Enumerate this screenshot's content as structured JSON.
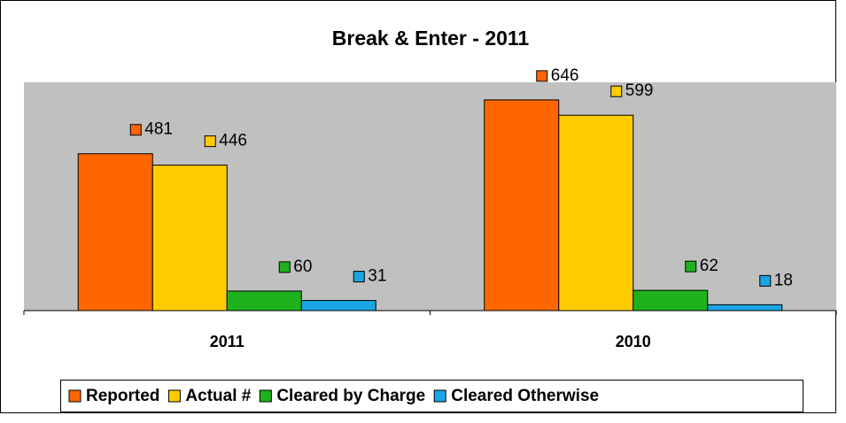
{
  "chart_data": {
    "type": "bar",
    "title": "Break & Enter - 2011",
    "categories": [
      "2011",
      "2010"
    ],
    "series": [
      {
        "name": "Reported",
        "color": "#ff6600",
        "values": [
          481,
          646
        ]
      },
      {
        "name": "Actual #",
        "color": "#ffcc00",
        "values": [
          446,
          599
        ]
      },
      {
        "name": "Cleared by Charge",
        "color": "#1fb21f",
        "values": [
          60,
          62
        ]
      },
      {
        "name": "Cleared Otherwise",
        "color": "#1aa6e6",
        "values": [
          31,
          18
        ]
      }
    ],
    "ylim": [
      0,
      700
    ],
    "legend": "bottom"
  }
}
